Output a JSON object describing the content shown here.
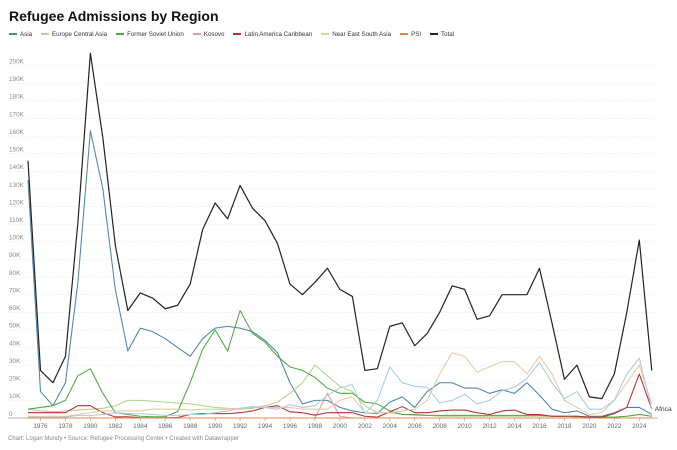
{
  "chart_data": {
    "type": "line",
    "title": "Refugee Admissions by Region",
    "footer": "Chart: Logan Mundy • Source: Refugee Processing Center • Created with Datawrapper",
    "xlabel": "",
    "ylabel": "",
    "ylim": [
      0,
      210000
    ],
    "xlim": [
      1975,
      2025.5
    ],
    "grid": true,
    "legend_position": "top",
    "y_ticks": [
      0,
      10000,
      20000,
      30000,
      40000,
      50000,
      60000,
      70000,
      80000,
      90000,
      100000,
      110000,
      120000,
      130000,
      140000,
      150000,
      160000,
      170000,
      180000,
      190000,
      200000
    ],
    "y_tick_labels": [
      "0",
      "10K",
      "20K",
      "30K",
      "40K",
      "50K",
      "60K",
      "70K",
      "80K",
      "90K",
      "100K",
      "110K",
      "120K",
      "130K",
      "140K",
      "150K",
      "160K",
      "170K",
      "180K",
      "190K",
      "200K"
    ],
    "x_ticks": [
      1976,
      1978,
      1980,
      1982,
      1984,
      1986,
      1988,
      1990,
      1992,
      1994,
      1996,
      1998,
      2000,
      2002,
      2004,
      2006,
      2008,
      2010,
      2012,
      2014,
      2016,
      2018,
      2020,
      2022,
      2024
    ],
    "x_tick_labels": [
      "1976",
      "1978",
      "1980",
      "1982",
      "1984",
      "1986",
      "1988",
      "1990",
      "1992",
      "1994",
      "1996",
      "1998",
      "2000",
      "2002",
      "2004",
      "2006",
      "2008",
      "2010",
      "2012",
      "2014",
      "2016",
      "2018",
      "2020",
      "2022",
      "2024"
    ],
    "end_label": "Africa",
    "series": [
      {
        "name": "Asia",
        "color": "#4a86a8",
        "x": [
          1975,
          1976,
          1977,
          1978,
          1979,
          1980,
          1981,
          1982,
          1983,
          1984,
          1985,
          1986,
          1987,
          1988,
          1989,
          1990,
          1991,
          1992,
          1993,
          1994,
          1995,
          1996,
          1997,
          1998,
          1999,
          2000,
          2001,
          2002,
          2003,
          2004,
          2005,
          2006,
          2007,
          2008,
          2009,
          2010,
          2011,
          2012,
          2013,
          2014,
          2015,
          2016,
          2017,
          2018,
          2019,
          2020,
          2021,
          2022,
          2023,
          2024,
          2025
        ],
        "y": [
          135000,
          15000,
          7000,
          20000,
          77000,
          163000,
          130000,
          73000,
          38000,
          51000,
          49000,
          45000,
          40000,
          35000,
          45000,
          51000,
          52000,
          51000,
          49000,
          44000,
          37000,
          20000,
          8000,
          10000,
          10000,
          6000,
          4000,
          3000,
          2500,
          9000,
          12000,
          6000,
          15000,
          20000,
          20000,
          17000,
          17000,
          14000,
          16000,
          14000,
          20000,
          13000,
          5000,
          3000,
          4000,
          1000,
          1000,
          3000,
          6000,
          6000,
          2000
        ]
      },
      {
        "name": "Europe Central Asia",
        "color": "#b0d690",
        "x": [
          1975,
          1976,
          1977,
          1978,
          1979,
          1980,
          1981,
          1982,
          1983,
          1984,
          1985,
          1986,
          1987,
          1988,
          1989,
          1990,
          1991,
          1992,
          1993,
          1994,
          1995,
          1996,
          1997,
          1998,
          1999,
          2000,
          2001,
          2002,
          2003,
          2004,
          2005,
          2006,
          2007,
          2008,
          2009,
          2010,
          2011,
          2012,
          2013,
          2014,
          2015,
          2016,
          2017,
          2018,
          2019,
          2020,
          2021,
          2022,
          2023,
          2024,
          2025
        ],
        "y": [
          5000,
          4000,
          3500,
          4000,
          4500,
          5000,
          5500,
          7000,
          10000,
          10000,
          9500,
          9000,
          8500,
          8000,
          7000,
          6000,
          5500,
          5000,
          5500,
          7000,
          9000,
          14000,
          20000,
          30000,
          24000,
          18000,
          15000,
          7000,
          3000,
          3000,
          2000,
          1500,
          1500,
          1000,
          1000,
          1000,
          1000,
          1000,
          1000,
          1000,
          1000,
          1000,
          1000,
          1000,
          500,
          500,
          500,
          500,
          1000,
          2000,
          1000
        ]
      },
      {
        "name": "Former Soviet Union",
        "color": "#4daa3e",
        "x": [
          1975,
          1976,
          1977,
          1978,
          1979,
          1980,
          1981,
          1982,
          1983,
          1984,
          1985,
          1986,
          1987,
          1988,
          1989,
          1990,
          1991,
          1992,
          1993,
          1994,
          1995,
          1996,
          1997,
          1998,
          1999,
          2000,
          2001,
          2002,
          2003,
          2004,
          2005,
          2006,
          2007,
          2008,
          2009,
          2010,
          2011,
          2012,
          2013,
          2014,
          2015,
          2016,
          2017,
          2018,
          2019,
          2020,
          2021,
          2022,
          2023,
          2024,
          2025
        ],
        "y": [
          5000,
          6000,
          7000,
          10000,
          24000,
          28000,
          14000,
          3000,
          2000,
          1000,
          700,
          800,
          3700,
          20000,
          39000,
          50000,
          38000,
          61000,
          48000,
          43000,
          35000,
          29000,
          27000,
          23000,
          17000,
          14000,
          14000,
          9000,
          8000,
          4000,
          2000,
          2000,
          1500,
          1500,
          1500,
          1500,
          1500,
          1500,
          1500,
          1500,
          1500,
          1500,
          1000,
          1000,
          1000,
          500,
          500,
          500,
          1000,
          2000,
          1000
        ]
      },
      {
        "name": "Kosovo",
        "color": "#e89aaa",
        "x": [
          1998,
          1999,
          2000,
          2001
        ],
        "y": [
          0,
          14000,
          1000,
          0
        ]
      },
      {
        "name": "Latin America Caribbean",
        "color": "#b62c3a",
        "x": [
          1975,
          1976,
          1977,
          1978,
          1979,
          1980,
          1981,
          1982,
          1983,
          1984,
          1985,
          1986,
          1987,
          1988,
          1989,
          1990,
          1991,
          1992,
          1993,
          1994,
          1995,
          1996,
          1997,
          1998,
          1999,
          2000,
          2001,
          2002,
          2003,
          2004,
          2005,
          2006,
          2007,
          2008,
          2009,
          2010,
          2011,
          2012,
          2013,
          2014,
          2015,
          2016,
          2017,
          2018,
          2019,
          2020,
          2021,
          2022,
          2023,
          2024,
          2025
        ],
        "y": [
          3000,
          3000,
          3000,
          3000,
          7000,
          7000,
          3000,
          600,
          700,
          200,
          100,
          100,
          300,
          2000,
          2500,
          2500,
          2500,
          3000,
          4000,
          6000,
          7000,
          3500,
          3000,
          1600,
          3000,
          3000,
          3000,
          1000,
          500,
          3500,
          6500,
          3000,
          3000,
          4000,
          4500,
          4500,
          3000,
          2000,
          4000,
          4500,
          2000,
          2000,
          1000,
          1000,
          1000,
          500,
          500,
          2500,
          6000,
          25000,
          5000
        ]
      },
      {
        "name": "Near East South Asia",
        "color": "#ecc9a0",
        "x": [
          1975,
          1976,
          1977,
          1978,
          1979,
          1980,
          1981,
          1982,
          1983,
          1984,
          1985,
          1986,
          1987,
          1988,
          1989,
          1990,
          1991,
          1992,
          1993,
          1994,
          1995,
          1996,
          1997,
          1998,
          1999,
          2000,
          2001,
          2002,
          2003,
          2004,
          2005,
          2006,
          2007,
          2008,
          2009,
          2010,
          2011,
          2012,
          2013,
          2014,
          2015,
          2016,
          2017,
          2018,
          2019,
          2020,
          2021,
          2022,
          2023,
          2024,
          2025
        ],
        "y": [
          1000,
          1000,
          1000,
          1000,
          2000,
          3000,
          4000,
          4000,
          4000,
          4000,
          5000,
          5000,
          5000,
          4500,
          5000,
          5000,
          5000,
          5500,
          6000,
          6000,
          6000,
          6000,
          5000,
          5000,
          5000,
          10000,
          12000,
          3000,
          3000,
          3000,
          4000,
          5000,
          10000,
          25000,
          37000,
          35000,
          26000,
          29000,
          32000,
          32000,
          25000,
          35000,
          25000,
          10000,
          6000,
          2000,
          3000,
          10000,
          20000,
          30000,
          8000
        ]
      },
      {
        "name": "Africa",
        "color": "#a9cbe0",
        "x": [
          1975,
          1976,
          1977,
          1978,
          1979,
          1980,
          1981,
          1982,
          1983,
          1984,
          1985,
          1986,
          1987,
          1988,
          1989,
          1990,
          1991,
          1992,
          1993,
          1994,
          1995,
          1996,
          1997,
          1998,
          1999,
          2000,
          2001,
          2002,
          2003,
          2004,
          2005,
          2006,
          2007,
          2008,
          2009,
          2010,
          2011,
          2012,
          2013,
          2014,
          2015,
          2016,
          2017,
          2018,
          2019,
          2020,
          2021,
          2022,
          2023,
          2024,
          2025
        ],
        "y": [
          500,
          500,
          500,
          500,
          1500,
          1500,
          2000,
          3000,
          2500,
          2500,
          2000,
          1500,
          1500,
          2000,
          2000,
          3000,
          4000,
          5500,
          6500,
          6000,
          5000,
          7500,
          6000,
          7000,
          13000,
          17000,
          19000,
          2500,
          10000,
          29000,
          20000,
          18000,
          17500,
          8500,
          10000,
          13500,
          8000,
          10000,
          15500,
          17500,
          22500,
          31500,
          20000,
          11000,
          15000,
          5000,
          5000,
          10000,
          25000,
          34000,
          5000
        ]
      },
      {
        "name": "PSI",
        "color": "#e0874a",
        "x": [
          1975,
          2025
        ],
        "y": [
          0,
          0
        ]
      },
      {
        "name": "Total",
        "color": "#222222",
        "x": [
          1975,
          1976,
          1977,
          1978,
          1979,
          1980,
          1981,
          1982,
          1983,
          1984,
          1985,
          1986,
          1987,
          1988,
          1989,
          1990,
          1991,
          1992,
          1993,
          1994,
          1995,
          1996,
          1997,
          1998,
          1999,
          2000,
          2001,
          2002,
          2003,
          2004,
          2005,
          2006,
          2007,
          2008,
          2009,
          2010,
          2011,
          2012,
          2013,
          2014,
          2015,
          2016,
          2017,
          2018,
          2019,
          2020,
          2021,
          2022,
          2023,
          2024,
          2025
        ],
        "y": [
          146000,
          27000,
          20000,
          35000,
          111000,
          207000,
          159000,
          98000,
          61000,
          71000,
          68000,
          62000,
          64000,
          76000,
          107000,
          122000,
          113000,
          132000,
          119000,
          112000,
          99000,
          76000,
          70000,
          77000,
          85000,
          73000,
          69000,
          27000,
          28000,
          52000,
          54000,
          41000,
          48000,
          60000,
          75000,
          73000,
          56000,
          58000,
          70000,
          70000,
          70000,
          85000,
          54000,
          22000,
          30000,
          12000,
          11000,
          25000,
          60000,
          101000,
          27000
        ]
      }
    ]
  }
}
